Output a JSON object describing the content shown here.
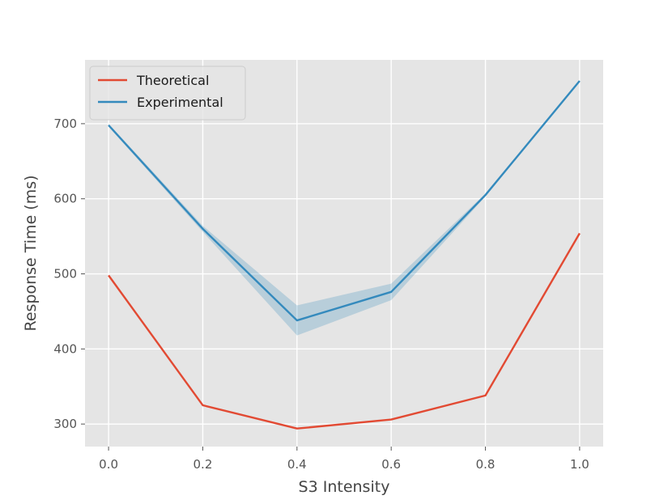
{
  "chart_data": {
    "type": "line",
    "title": "",
    "xlabel": "S3 Intensity",
    "ylabel": "Response Time (ms)",
    "xlim": [
      -0.05,
      1.05
    ],
    "ylim": [
      270,
      785
    ],
    "xticks": [
      0.0,
      0.2,
      0.4,
      0.6,
      0.8,
      1.0
    ],
    "xtick_labels": [
      "0.0",
      "0.2",
      "0.4",
      "0.6",
      "0.8",
      "1.0"
    ],
    "yticks": [
      300,
      400,
      500,
      600,
      700
    ],
    "ytick_labels": [
      "300",
      "400",
      "500",
      "600",
      "700"
    ],
    "grid": true,
    "legend": "top-left",
    "x": [
      0.0,
      0.2,
      0.4,
      0.6,
      0.8,
      1.0
    ],
    "series": [
      {
        "name": "Theoretical",
        "color": "#E24A33",
        "values": [
          498,
          325,
          294,
          306,
          338,
          554
        ]
      },
      {
        "name": "Experimental",
        "color": "#348ABD",
        "values": [
          698,
          560,
          438,
          476,
          605,
          757
        ],
        "band_lower": [
          696,
          556,
          418,
          465,
          603,
          757
        ],
        "band_upper": [
          700,
          564,
          458,
          487,
          607,
          757
        ],
        "band_color": "#348ABD"
      }
    ],
    "background_color": "#E5E5E5",
    "grid_color": "#FFFFFF"
  }
}
